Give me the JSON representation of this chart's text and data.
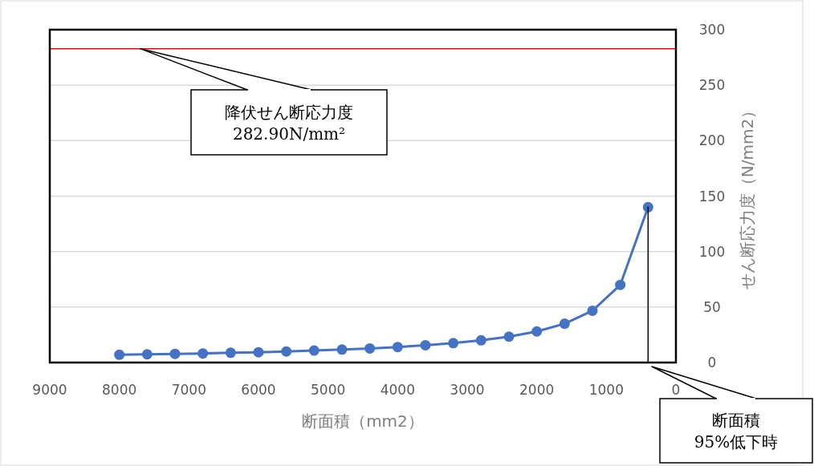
{
  "chart_data": {
    "type": "line",
    "xlabel": "断面積（mm2）",
    "ylabel": "せん断応力度（N/mm2）",
    "xlim": [
      9000,
      0
    ],
    "xticks": [
      9000,
      8000,
      7000,
      6000,
      5000,
      4000,
      3000,
      2000,
      1000,
      0
    ],
    "ylim": [
      0,
      300
    ],
    "yticks": [
      0,
      50,
      100,
      150,
      200,
      250,
      300
    ],
    "grid": "y",
    "marker": "circle",
    "line_style": "solid",
    "series": [
      {
        "color": "#4472c4",
        "x": [
          8000,
          7600,
          7200,
          6800,
          6400,
          6000,
          5600,
          5200,
          4800,
          4400,
          4000,
          3600,
          3200,
          2800,
          2400,
          2000,
          1600,
          1200,
          800,
          400
        ],
        "values": [
          7,
          7.4,
          7.8,
          8.2,
          8.8,
          9.3,
          10,
          10.8,
          11.7,
          12.7,
          14,
          15.6,
          17.5,
          20,
          23.3,
          28,
          35,
          46.7,
          70,
          140
        ]
      },
      {
        "color": "#000000",
        "marker": "none",
        "x": [
          400,
          400
        ],
        "values": [
          140,
          0
        ]
      }
    ],
    "ref_lines": [
      {
        "axis": "y",
        "value": 282.9,
        "color": "#ff0000"
      }
    ],
    "annotations": [
      {
        "text": "降伏せん断応力度\n282.90N/mm²",
        "x": 7700,
        "y": 282.9
      },
      "断面積\n95%低下時"
    ]
  }
}
